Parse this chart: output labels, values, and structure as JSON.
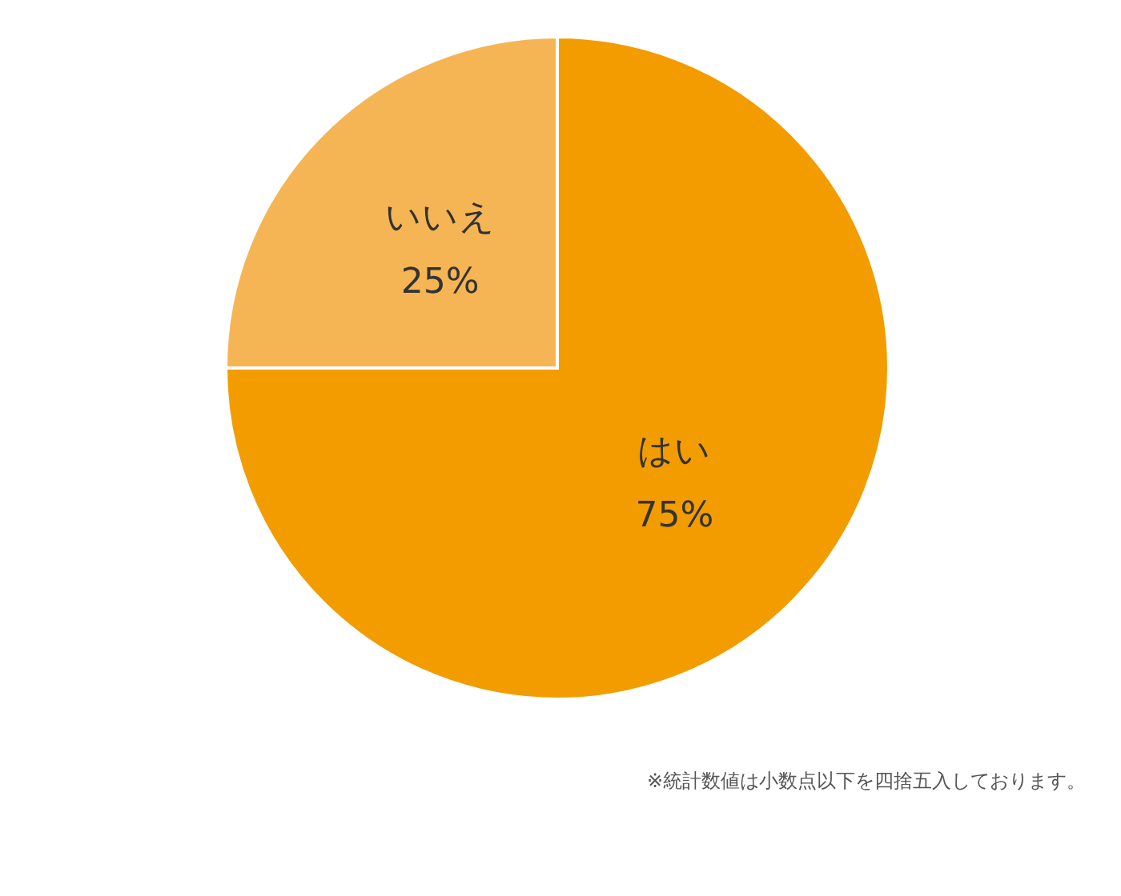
{
  "chart_data": {
    "type": "pie",
    "categories": [
      "はい",
      "いいえ"
    ],
    "values": [
      75,
      25
    ],
    "colors": [
      "#f39c00",
      "#f5b555"
    ],
    "value_labels": [
      "75%",
      "25%"
    ],
    "annotations": [
      "※統計数値は小数点以下を四捨五入しております。"
    ]
  }
}
